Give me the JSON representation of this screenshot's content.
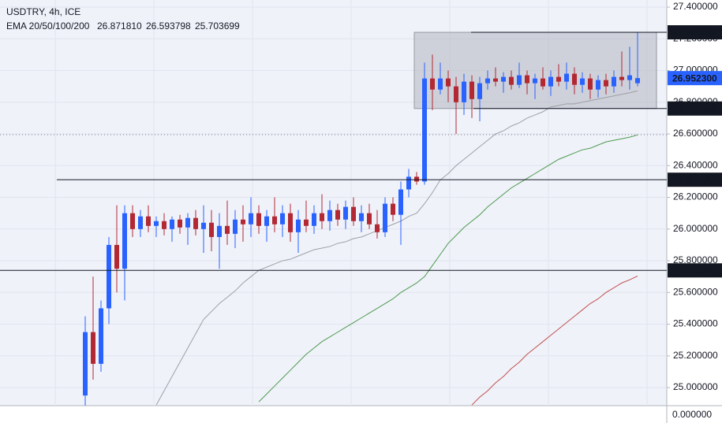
{
  "chart_data": {
    "type": "candlestick",
    "title": "USDTRY, 4h, ICE",
    "indicator_label": "EMA 20/50/100/200",
    "ylim": [
      24.886,
      27.445
    ],
    "yticks": [
      {
        "value": 27.4,
        "label": "27.400000"
      },
      {
        "value": 27.2,
        "label": "27.200000"
      },
      {
        "value": 27.0,
        "label": "27.000000"
      },
      {
        "value": 26.8,
        "label": "26.800000"
      },
      {
        "value": 26.6,
        "label": "26.600000"
      },
      {
        "value": 26.4,
        "label": "26.400000"
      },
      {
        "value": 26.2,
        "label": "26.200000"
      },
      {
        "value": 26.0,
        "label": "26.000000"
      },
      {
        "value": 25.8,
        "label": "25.800000"
      },
      {
        "value": 25.6,
        "label": "25.600000"
      },
      {
        "value": 25.4,
        "label": "25.400000"
      },
      {
        "value": 25.2,
        "label": "25.200000"
      },
      {
        "value": 25.0,
        "label": "25.000000"
      }
    ],
    "bottom_tick_label": "0.000000",
    "grid": true,
    "up_color": "#2962ff",
    "down_color": "#b22833",
    "open": [
      24.95,
      25.35,
      25.15,
      25.5,
      25.9,
      25.75,
      26.1,
      26.0,
      26.08,
      26.02,
      26.05,
      26.0,
      26.06,
      26.01,
      26.07,
      26.0,
      26.04,
      25.95,
      26.02,
      25.97,
      26.06,
      26.03,
      26.1,
      26.02,
      26.08,
      26.03,
      26.1,
      25.98,
      26.06,
      26.02,
      26.1,
      26.05,
      26.12,
      26.06,
      26.14,
      26.05,
      26.1,
      26.03,
      25.98,
      26.16,
      26.09,
      26.25,
      26.33,
      26.3,
      26.95,
      26.88,
      26.95,
      26.9,
      26.8,
      26.93,
      26.82,
      26.92,
      26.95,
      26.93,
      26.96,
      26.91,
      26.97,
      26.92,
      26.95,
      26.9,
      26.96,
      26.93,
      26.98,
      26.91,
      26.95,
      26.88,
      26.94,
      26.9,
      26.96,
      26.94,
      26.92
    ],
    "high": [
      25.45,
      25.7,
      25.55,
      25.95,
      26.15,
      26.15,
      26.15,
      26.12,
      26.15,
      26.08,
      26.1,
      26.08,
      26.09,
      26.1,
      26.12,
      26.15,
      26.12,
      26.1,
      26.18,
      26.12,
      26.15,
      26.2,
      26.15,
      26.12,
      26.2,
      26.15,
      26.16,
      26.12,
      26.18,
      26.15,
      26.22,
      26.18,
      26.16,
      26.18,
      26.2,
      26.15,
      26.16,
      26.12,
      26.2,
      26.2,
      26.3,
      26.38,
      26.36,
      27.05,
      27.1,
      27.05,
      27.0,
      26.96,
      26.98,
      26.97,
      26.96,
      27.0,
      27.02,
      26.99,
      27.0,
      27.05,
      27.0,
      26.98,
      27.02,
      27.0,
      27.04,
      27.05,
      27.02,
      26.99,
      26.98,
      26.97,
      26.98,
      27.0,
      27.12,
      27.15,
      27.241125
    ],
    "low": [
      24.88,
      25.05,
      25.1,
      25.4,
      25.6,
      25.55,
      25.95,
      25.95,
      25.98,
      25.95,
      25.96,
      25.92,
      25.97,
      25.9,
      25.96,
      25.85,
      25.86,
      25.75,
      25.9,
      25.88,
      25.92,
      25.95,
      25.97,
      25.92,
      25.98,
      25.95,
      25.92,
      25.85,
      25.98,
      25.97,
      26.0,
      25.99,
      26.02,
      26.0,
      26.02,
      25.98,
      26.0,
      25.94,
      25.95,
      26.05,
      25.9,
      26.2,
      26.28,
      26.28,
      26.75,
      26.85,
      26.8,
      26.6,
      26.72,
      26.7,
      26.68,
      26.88,
      26.9,
      26.86,
      26.88,
      26.89,
      26.85,
      26.82,
      26.88,
      26.84,
      26.9,
      26.88,
      26.85,
      26.86,
      26.82,
      26.83,
      26.85,
      26.86,
      26.9,
      26.88,
      26.9
    ],
    "close": [
      25.35,
      25.15,
      25.5,
      25.9,
      25.75,
      26.1,
      26.0,
      26.08,
      26.02,
      26.05,
      26.0,
      26.06,
      26.01,
      26.07,
      26.0,
      26.04,
      25.95,
      26.02,
      25.97,
      26.06,
      26.03,
      26.1,
      26.02,
      26.08,
      26.03,
      26.1,
      25.98,
      26.06,
      26.02,
      26.1,
      26.05,
      26.12,
      26.06,
      26.14,
      26.05,
      26.1,
      26.03,
      25.98,
      26.16,
      26.09,
      26.25,
      26.33,
      26.3,
      26.95,
      26.88,
      26.95,
      26.9,
      26.8,
      26.93,
      26.82,
      26.92,
      26.95,
      26.93,
      26.96,
      26.91,
      26.97,
      26.92,
      26.95,
      26.9,
      26.96,
      26.93,
      26.98,
      26.91,
      26.95,
      26.88,
      26.94,
      26.9,
      26.96,
      26.94,
      26.97,
      26.9523
    ],
    "series": [
      {
        "color": "#9e9ea6",
        "value_label": "26.871810",
        "values": [
          null,
          null,
          null,
          null,
          null,
          null,
          null,
          null,
          null,
          24.89,
          24.98,
          25.07,
          25.16,
          25.25,
          25.34,
          25.43,
          25.48,
          25.53,
          25.57,
          25.61,
          25.66,
          25.7,
          25.74,
          25.76,
          25.78,
          25.8,
          25.81,
          25.83,
          25.85,
          25.87,
          25.88,
          25.89,
          25.91,
          25.92,
          25.94,
          25.95,
          25.97,
          25.99,
          26.01,
          26.03,
          26.05,
          26.08,
          26.1,
          26.16,
          26.23,
          26.31,
          26.35,
          26.4,
          26.44,
          26.48,
          26.52,
          26.56,
          26.6,
          26.62,
          26.65,
          26.67,
          26.7,
          26.72,
          26.74,
          26.77,
          26.78,
          26.79,
          26.79,
          26.8,
          26.81,
          26.82,
          26.83,
          26.84,
          26.85,
          26.86,
          26.87181
        ]
      },
      {
        "color": "#4c9a4c",
        "value_label": "26.593798",
        "values": [
          null,
          null,
          null,
          null,
          null,
          null,
          null,
          null,
          null,
          null,
          null,
          null,
          null,
          null,
          null,
          null,
          null,
          null,
          null,
          null,
          null,
          null,
          24.91,
          24.96,
          25.01,
          25.06,
          25.11,
          25.16,
          25.21,
          25.25,
          25.29,
          25.32,
          25.35,
          25.38,
          25.41,
          25.44,
          25.47,
          25.5,
          25.53,
          25.56,
          25.6,
          25.63,
          25.66,
          25.7,
          25.77,
          25.84,
          25.91,
          25.96,
          26.01,
          26.05,
          26.09,
          26.14,
          26.18,
          26.22,
          26.26,
          26.29,
          26.32,
          26.35,
          26.38,
          26.41,
          26.44,
          26.46,
          26.48,
          26.5,
          26.51,
          26.53,
          26.55,
          26.56,
          26.57,
          26.58,
          26.593798
        ]
      },
      {
        "color": "#c0504d",
        "value_label": "25.703699",
        "values": [
          null,
          null,
          null,
          null,
          null,
          null,
          null,
          null,
          null,
          null,
          null,
          null,
          null,
          null,
          null,
          null,
          null,
          null,
          null,
          null,
          null,
          null,
          null,
          null,
          null,
          null,
          null,
          null,
          null,
          null,
          null,
          null,
          null,
          null,
          null,
          null,
          null,
          null,
          null,
          null,
          null,
          null,
          null,
          null,
          null,
          null,
          null,
          null,
          null,
          24.89,
          24.94,
          24.98,
          25.03,
          25.07,
          25.12,
          25.16,
          25.21,
          25.25,
          25.29,
          25.33,
          25.37,
          25.41,
          25.45,
          25.49,
          25.53,
          25.56,
          25.6,
          25.63,
          25.66,
          25.68,
          25.703699
        ]
      }
    ],
    "levels": [
      {
        "value": 27.241125,
        "label": "27.241125"
      },
      {
        "value": 26.760455,
        "label": "26.760455"
      },
      {
        "value": 26.311212,
        "label": "26.311212"
      },
      {
        "value": 25.739348,
        "label": "25.739348"
      }
    ],
    "last_price": {
      "value": 26.9523,
      "label": "26.952300"
    }
  }
}
